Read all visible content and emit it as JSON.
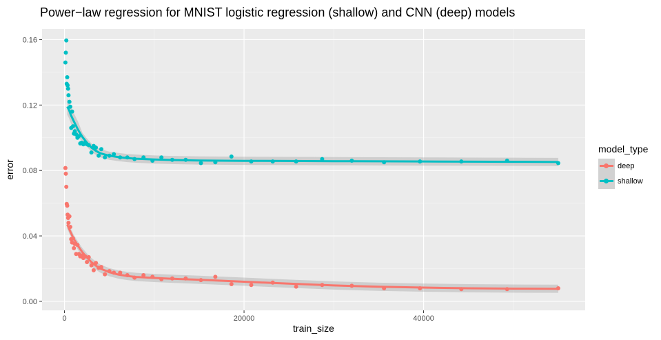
{
  "chart_data": {
    "type": "scatter",
    "title": "Power−law regression for MNIST logistic regression (shallow) and CNN (deep) models",
    "xlabel": "train_size",
    "ylabel": "error",
    "xlim": [
      -2500,
      58000
    ],
    "ylim": [
      -0.0055,
      0.1665
    ],
    "x_ticks": [
      0,
      20000,
      40000
    ],
    "x_tick_labels": [
      "0",
      "20000",
      "40000"
    ],
    "y_ticks": [
      0,
      0.04,
      0.08,
      0.12,
      0.16
    ],
    "y_tick_labels": [
      "0.00",
      "0.04",
      "0.08",
      "0.12",
      "0.16"
    ],
    "grid": true,
    "legend_title": "model_type",
    "legend_position": "right",
    "series": [
      {
        "name": "deep",
        "color": "#f8766d",
        "points": [
          [
            100,
            0.0815
          ],
          [
            150,
            0.078
          ],
          [
            200,
            0.07
          ],
          [
            250,
            0.0595
          ],
          [
            300,
            0.0585
          ],
          [
            350,
            0.053
          ],
          [
            400,
            0.051
          ],
          [
            450,
            0.048
          ],
          [
            550,
            0.052
          ],
          [
            650,
            0.0455
          ],
          [
            750,
            0.038
          ],
          [
            850,
            0.036
          ],
          [
            950,
            0.0385
          ],
          [
            1050,
            0.0325
          ],
          [
            1150,
            0.035
          ],
          [
            1300,
            0.029
          ],
          [
            1450,
            0.0345
          ],
          [
            1600,
            0.029
          ],
          [
            1750,
            0.0275
          ],
          [
            1900,
            0.028
          ],
          [
            2100,
            0.0265
          ],
          [
            2300,
            0.0275
          ],
          [
            2500,
            0.024
          ],
          [
            2700,
            0.027
          ],
          [
            3000,
            0.022
          ],
          [
            3250,
            0.019
          ],
          [
            3500,
            0.0235
          ],
          [
            3800,
            0.0205
          ],
          [
            4100,
            0.021
          ],
          [
            4500,
            0.0165
          ],
          [
            5000,
            0.0185
          ],
          [
            5500,
            0.0175
          ],
          [
            6200,
            0.0175
          ],
          [
            7000,
            0.016
          ],
          [
            7800,
            0.0145
          ],
          [
            8800,
            0.016
          ],
          [
            9800,
            0.015
          ],
          [
            10800,
            0.0135
          ],
          [
            12000,
            0.014
          ],
          [
            13500,
            0.014
          ],
          [
            15200,
            0.013
          ],
          [
            16800,
            0.015
          ],
          [
            18600,
            0.0105
          ],
          [
            20800,
            0.01
          ],
          [
            23200,
            0.0115
          ],
          [
            25800,
            0.009
          ],
          [
            28700,
            0.01
          ],
          [
            32000,
            0.0095
          ],
          [
            35600,
            0.008
          ],
          [
            39600,
            0.008
          ],
          [
            44200,
            0.0075
          ],
          [
            49300,
            0.0075
          ],
          [
            55000,
            0.008
          ]
        ],
        "fit": [
          [
            300,
            0.047
          ],
          [
            500,
            0.0445
          ],
          [
            700,
            0.042
          ],
          [
            1000,
            0.0385
          ],
          [
            1500,
            0.034
          ],
          [
            2000,
            0.03
          ],
          [
            2500,
            0.0268
          ],
          [
            3000,
            0.024
          ],
          [
            3500,
            0.0218
          ],
          [
            4000,
            0.02
          ],
          [
            5000,
            0.0178
          ],
          [
            6000,
            0.0164
          ],
          [
            7000,
            0.0155
          ],
          [
            8000,
            0.0149
          ],
          [
            10000,
            0.0143
          ],
          [
            12000,
            0.0138
          ],
          [
            15000,
            0.0132
          ],
          [
            20000,
            0.012
          ],
          [
            25000,
            0.0108
          ],
          [
            30000,
            0.0097
          ],
          [
            35000,
            0.0089
          ],
          [
            40000,
            0.0084
          ],
          [
            45000,
            0.008
          ],
          [
            50000,
            0.0078
          ],
          [
            55000,
            0.0077
          ]
        ]
      },
      {
        "name": "shallow",
        "color": "#00bfc4",
        "points": [
          [
            100,
            0.146
          ],
          [
            150,
            0.152
          ],
          [
            200,
            0.1595
          ],
          [
            250,
            0.133
          ],
          [
            300,
            0.137
          ],
          [
            350,
            0.132
          ],
          [
            400,
            0.13
          ],
          [
            450,
            0.126
          ],
          [
            550,
            0.122
          ],
          [
            650,
            0.119
          ],
          [
            750,
            0.106
          ],
          [
            850,
            0.116
          ],
          [
            950,
            0.107
          ],
          [
            1050,
            0.1025
          ],
          [
            1150,
            0.104
          ],
          [
            1300,
            0.102
          ],
          [
            1450,
            0.1
          ],
          [
            1600,
            0.101
          ],
          [
            1750,
            0.0965
          ],
          [
            1900,
            0.097
          ],
          [
            2100,
            0.096
          ],
          [
            2300,
            0.097
          ],
          [
            2500,
            0.096
          ],
          [
            2700,
            0.0955
          ],
          [
            3000,
            0.091
          ],
          [
            3250,
            0.095
          ],
          [
            3500,
            0.094
          ],
          [
            3800,
            0.089
          ],
          [
            4100,
            0.093
          ],
          [
            4500,
            0.088
          ],
          [
            5000,
            0.089
          ],
          [
            5500,
            0.09
          ],
          [
            6200,
            0.088
          ],
          [
            7000,
            0.088
          ],
          [
            7800,
            0.087
          ],
          [
            8800,
            0.088
          ],
          [
            9800,
            0.086
          ],
          [
            10800,
            0.088
          ],
          [
            12000,
            0.0865
          ],
          [
            13500,
            0.0865
          ],
          [
            15200,
            0.0845
          ],
          [
            16800,
            0.085
          ],
          [
            18600,
            0.0885
          ],
          [
            20800,
            0.0855
          ],
          [
            23200,
            0.0855
          ],
          [
            25800,
            0.0855
          ],
          [
            28700,
            0.087
          ],
          [
            32000,
            0.086
          ],
          [
            35600,
            0.085
          ],
          [
            39600,
            0.0855
          ],
          [
            44200,
            0.0855
          ],
          [
            49300,
            0.086
          ],
          [
            55000,
            0.0845
          ]
        ],
        "fit": [
          [
            300,
            0.119
          ],
          [
            500,
            0.117
          ],
          [
            700,
            0.114
          ],
          [
            1000,
            0.1105
          ],
          [
            1500,
            0.105
          ],
          [
            2000,
            0.1005
          ],
          [
            2500,
            0.097
          ],
          [
            3000,
            0.094
          ],
          [
            3500,
            0.092
          ],
          [
            4000,
            0.0905
          ],
          [
            5000,
            0.089
          ],
          [
            6000,
            0.0882
          ],
          [
            7000,
            0.0876
          ],
          [
            8000,
            0.0872
          ],
          [
            10000,
            0.0867
          ],
          [
            12000,
            0.0864
          ],
          [
            15000,
            0.0861
          ],
          [
            20000,
            0.0859
          ],
          [
            25000,
            0.0858
          ],
          [
            30000,
            0.0857
          ],
          [
            35000,
            0.0856
          ],
          [
            40000,
            0.0855
          ],
          [
            45000,
            0.0854
          ],
          [
            50000,
            0.0853
          ],
          [
            55000,
            0.0852
          ]
        ]
      }
    ]
  }
}
